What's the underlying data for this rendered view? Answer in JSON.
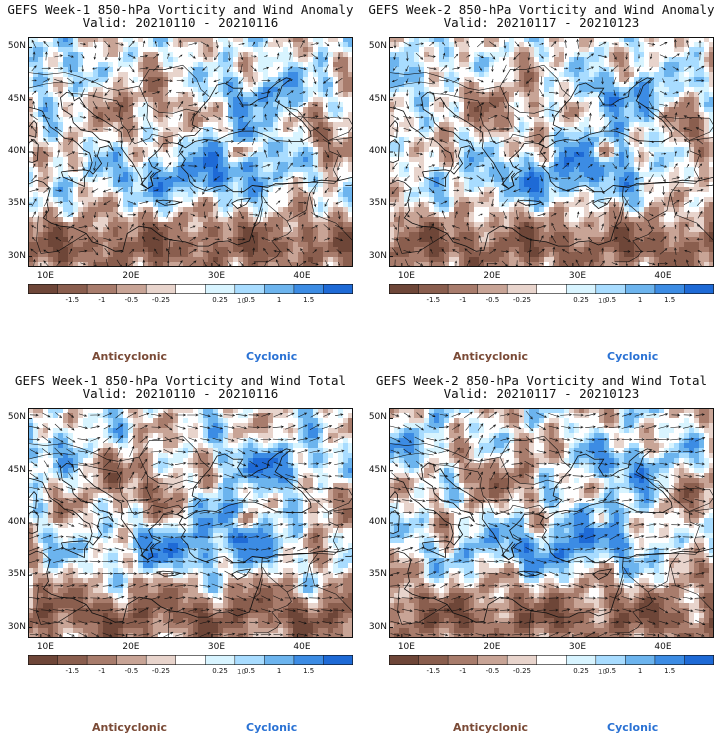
{
  "panels": [
    {
      "title": "GEFS Week-1 850-hPa Vorticity and Wind Anomaly",
      "valid": "Valid: 20210110 - 20210116",
      "kind": "anomaly",
      "seed": 11
    },
    {
      "title": "GEFS Week-2 850-hPa Vorticity and Wind Anomaly",
      "valid": "Valid: 20210117 - 20210123",
      "kind": "anomaly",
      "seed": 23
    },
    {
      "title": "GEFS Week-1 850-hPa Vorticity and Wind Total",
      "valid": "Valid: 20210110 - 20210116",
      "kind": "total",
      "seed": 37
    },
    {
      "title": "GEFS Week-2 850-hPa Vorticity and Wind Total",
      "valid": "Valid: 20210117 - 20210123",
      "kind": "total",
      "seed": 53
    }
  ],
  "lat_labels": [
    "50N",
    "45N",
    "40N",
    "35N",
    "30N"
  ],
  "lon_labels": [
    "10E",
    "20E",
    "30E",
    "40E"
  ],
  "colorbar": {
    "labels": [
      "-1.5",
      "-1",
      "-0.5",
      "-0.25",
      "0.25",
      "0.5",
      "1",
      "1.5"
    ],
    "unit": "10",
    "colors": [
      "#6e4638",
      "#8a5e4e",
      "#a87c6c",
      "#c8a496",
      "#e8d4cc",
      "#ffffff",
      "#d8f4ff",
      "#a8dcff",
      "#6cb4ee",
      "#3c8ce4",
      "#1e6ad6"
    ]
  },
  "legend": {
    "anticyclonic": "Anticyclonic",
    "cyclonic": "Cyclonic"
  },
  "colors": {
    "anticyclonic": "#7a4a36",
    "cyclonic": "#2a72d4"
  }
}
